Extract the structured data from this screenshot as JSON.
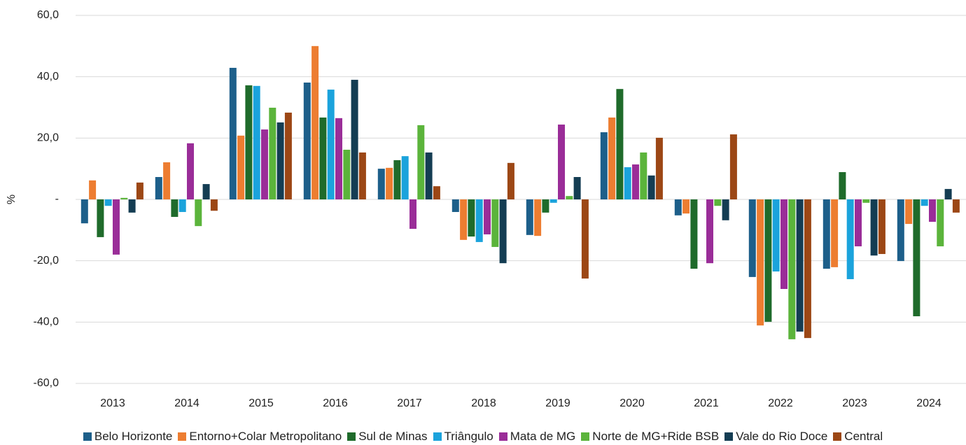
{
  "chart_data": {
    "type": "bar",
    "y_label": "%",
    "categories": [
      "2013",
      "2014",
      "2015",
      "2016",
      "2017",
      "2018",
      "2019",
      "2020",
      "2021",
      "2022",
      "2023",
      "2024"
    ],
    "series": [
      {
        "name": "Belo Horizonte",
        "color": "#1d5f8a",
        "values": [
          -7.8,
          7.3,
          42.9,
          38.1,
          10.0,
          -4.1,
          -11.6,
          21.9,
          -5.2,
          -25.3,
          -22.6,
          -20.1
        ]
      },
      {
        "name": "Entorno+Colar Metropolitano",
        "color": "#ed7d31",
        "values": [
          6.2,
          12.1,
          20.8,
          50.0,
          10.3,
          -13.2,
          -11.9,
          26.7,
          -4.6,
          -41.1,
          -22.1,
          -8.0
        ]
      },
      {
        "name": "Sul de Minas",
        "color": "#1f6b2b",
        "values": [
          -12.3,
          -5.7,
          37.2,
          26.7,
          12.8,
          -12.1,
          -4.3,
          36.0,
          -22.6,
          -39.9,
          8.9,
          -38.1
        ]
      },
      {
        "name": "Triângulo",
        "color": "#1ba3dc",
        "values": [
          -2.1,
          -4.1,
          37.0,
          35.8,
          14.1,
          -13.9,
          -1.1,
          10.5,
          0,
          -23.5,
          -26.0,
          -2.1
        ]
      },
      {
        "name": "Mata de MG",
        "color": "#9a2d98",
        "values": [
          -18.0,
          18.3,
          22.8,
          26.5,
          -9.6,
          -11.4,
          24.4,
          11.4,
          -20.8,
          -29.2,
          -15.3,
          -7.3
        ]
      },
      {
        "name": "Norte de MG+Ride BSB",
        "color": "#5bb43b",
        "values": [
          0.5,
          -8.7,
          29.9,
          16.2,
          24.2,
          -15.5,
          1.1,
          15.3,
          -2.1,
          -45.6,
          -1.1,
          -15.3
        ]
      },
      {
        "name": "Vale do Rio Doce",
        "color": "#143d53",
        "values": [
          -4.3,
          5.0,
          25.1,
          39.0,
          15.3,
          -20.8,
          7.3,
          7.8,
          -6.8,
          -43.1,
          -18.3,
          3.4
        ]
      },
      {
        "name": "Central",
        "color": "#9c4715",
        "values": [
          5.5,
          -3.7,
          28.3,
          15.3,
          4.3,
          11.9,
          -25.8,
          20.1,
          21.2,
          -45.2,
          -17.8,
          -4.3
        ]
      }
    ],
    "ylim": [
      -60,
      60
    ],
    "yticks": [
      {
        "value": -60,
        "label": "-60,0"
      },
      {
        "value": -40,
        "label": "-40,0"
      },
      {
        "value": -20,
        "label": "-20,0"
      },
      {
        "value": 0,
        "label": "-"
      },
      {
        "value": 20,
        "label": "20,0"
      },
      {
        "value": 40,
        "label": "40,0"
      },
      {
        "value": 60,
        "label": "60,0"
      }
    ],
    "grid": true
  }
}
